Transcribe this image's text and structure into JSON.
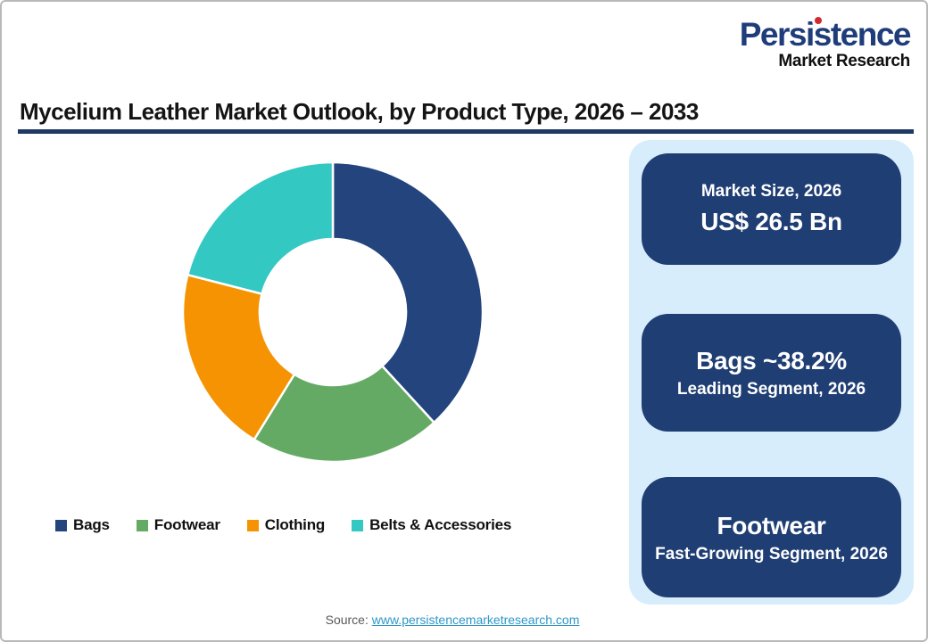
{
  "brand": {
    "name": "Persistence",
    "subtitle": "Market Research",
    "name_color": "#1f3d7a",
    "dot_color": "#d02c2f"
  },
  "header": {
    "title": "Mycelium Leather Market Outlook, by Product Type, 2026 – 2033",
    "rule_color": "#1f3864"
  },
  "chart_data": {
    "type": "pie",
    "subtype": "donut",
    "title": "Mycelium Leather Market Outlook, by Product Type, 2026 – 2033",
    "categories": [
      "Bags",
      "Footwear",
      "Clothing",
      "Belts & Accessories"
    ],
    "values": [
      38.2,
      20.6,
      20.2,
      21.0
    ],
    "unit": "%",
    "colors": [
      "#24447e",
      "#64aa64",
      "#f59303",
      "#34c8c3"
    ],
    "start_angle_deg": 0,
    "direction": "clockwise",
    "inner_radius_ratio": 0.49,
    "separator_color": "#ffffff",
    "legend_position": "bottom",
    "notes": "Only the Bags share (~38.2%) is labeled explicitly in the graphic; other segment values estimated from arc angles"
  },
  "panel": {
    "bg_color": "#d7edfb",
    "box_color": "#1f3e73",
    "boxes": [
      {
        "line1": "Market Size, 2026",
        "line2": "US$ 26.5 Bn"
      },
      {
        "line1": "Bags ~38.2%",
        "line2": "Leading Segment, 2026"
      },
      {
        "line1": "Footwear",
        "line2": "Fast-Growing Segment, 2026"
      }
    ]
  },
  "footer": {
    "source_label": "Source:",
    "source_link": "www.persistencemarketresearch.com",
    "link_color": "#2e97c8"
  }
}
